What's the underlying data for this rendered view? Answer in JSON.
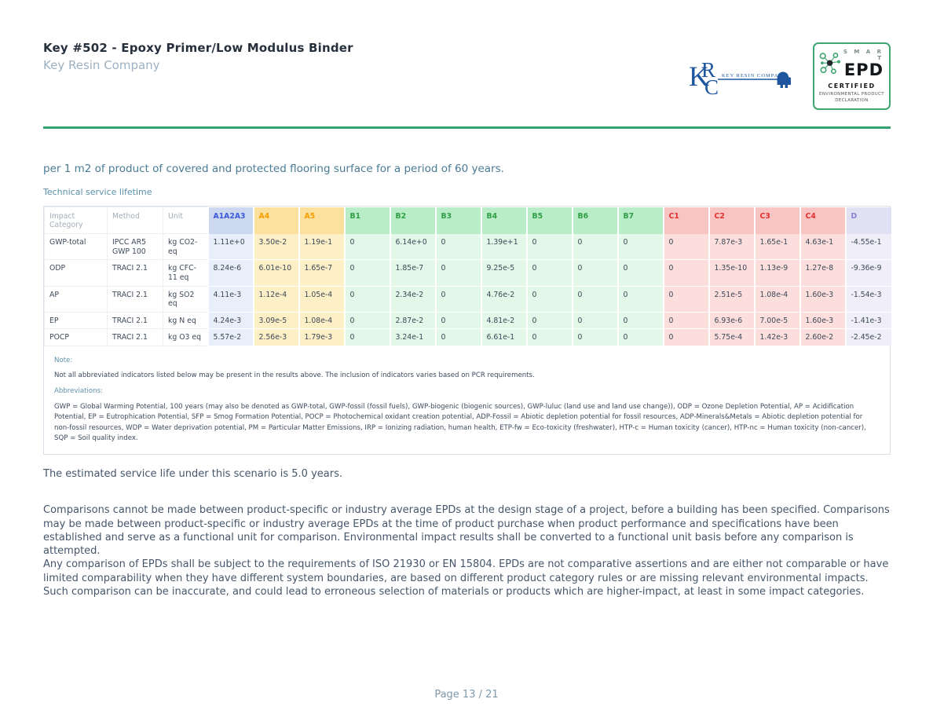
{
  "header": {
    "title": "Key #502 - Epoxy Primer/Low Modulus Binder",
    "subtitle": "Key Resin Company"
  },
  "logos": {
    "krc": {
      "letter_k": "K",
      "letter_r": "R",
      "letter_c": "C",
      "company": "KEY RESIN COMPANY"
    },
    "smart_epd": {
      "smart": "S M A R T",
      "epd": "EPD",
      "certified": "CERTIFIED",
      "env_line1": "ENVIRONMENTAL PRODUCT",
      "env_line2": "DECLARATION"
    }
  },
  "intro": {
    "functional_unit": "per 1 m2 of product of covered and protected flooring surface for a period of 60 years.",
    "table_caption": "Technical service lifetime"
  },
  "results_table": {
    "meta_columns": [
      "Impact Category",
      "Method",
      "Unit"
    ],
    "value_columns": [
      {
        "label": "A1A2A3",
        "group": "a1"
      },
      {
        "label": "A4",
        "group": "a45"
      },
      {
        "label": "A5",
        "group": "a45"
      },
      {
        "label": "B1",
        "group": "b"
      },
      {
        "label": "B2",
        "group": "b"
      },
      {
        "label": "B3",
        "group": "b"
      },
      {
        "label": "B4",
        "group": "b"
      },
      {
        "label": "B5",
        "group": "b"
      },
      {
        "label": "B6",
        "group": "b"
      },
      {
        "label": "B7",
        "group": "b"
      },
      {
        "label": "C1",
        "group": "c"
      },
      {
        "label": "C2",
        "group": "c"
      },
      {
        "label": "C3",
        "group": "c"
      },
      {
        "label": "C4",
        "group": "c"
      },
      {
        "label": "D",
        "group": "d"
      }
    ],
    "group_colors": {
      "a1": {
        "header_bg": "#ccd8f0",
        "header_text": "#3b5bdb",
        "cell_bg": "#e9effa"
      },
      "a45": {
        "header_bg": "#fce09e",
        "header_text": "#f59f00",
        "cell_bg": "#fdf0c6"
      },
      "b": {
        "header_bg": "#b9edc8",
        "header_text": "#2f9e44",
        "cell_bg": "#e3f8e9"
      },
      "c": {
        "header_bg": "#f9c5c2",
        "header_text": "#e03131",
        "cell_bg": "#fcdedd"
      },
      "d": {
        "header_bg": "#e2e1f3",
        "header_text": "#8a7fd6",
        "cell_bg": "#f0eff9"
      }
    },
    "rows": [
      {
        "impact_category": "GWP-total",
        "method": "IPCC AR5 GWP 100",
        "unit": "kg CO2-eq",
        "values": [
          "1.11e+0",
          "3.50e-2",
          "1.19e-1",
          "0",
          "6.14e+0",
          "0",
          "1.39e+1",
          "0",
          "0",
          "0",
          "0",
          "7.87e-3",
          "1.65e-1",
          "4.63e-1",
          "-4.55e-1"
        ]
      },
      {
        "impact_category": "ODP",
        "method": "TRACI 2.1",
        "unit": "kg CFC-11 eq",
        "values": [
          "8.24e-6",
          "6.01e-10",
          "1.65e-7",
          "0",
          "1.85e-7",
          "0",
          "9.25e-5",
          "0",
          "0",
          "0",
          "0",
          "1.35e-10",
          "1.13e-9",
          "1.27e-8",
          "-9.36e-9"
        ]
      },
      {
        "impact_category": "AP",
        "method": "TRACI 2.1",
        "unit": "kg SO2 eq",
        "values": [
          "4.11e-3",
          "1.12e-4",
          "1.05e-4",
          "0",
          "2.34e-2",
          "0",
          "4.76e-2",
          "0",
          "0",
          "0",
          "0",
          "2.51e-5",
          "1.08e-4",
          "1.60e-3",
          "-1.54e-3"
        ]
      },
      {
        "impact_category": "EP",
        "method": "TRACI 2.1",
        "unit": "kg N eq",
        "values": [
          "4.24e-3",
          "3.09e-5",
          "1.08e-4",
          "0",
          "2.87e-2",
          "0",
          "4.81e-2",
          "0",
          "0",
          "0",
          "0",
          "6.93e-6",
          "7.00e-5",
          "1.60e-3",
          "-1.41e-3"
        ]
      },
      {
        "impact_category": "POCP",
        "method": "TRACI 2.1",
        "unit": "kg O3 eq",
        "values": [
          "5.57e-2",
          "2.56e-3",
          "1.79e-3",
          "0",
          "3.24e-1",
          "0",
          "6.61e-1",
          "0",
          "0",
          "0",
          "0",
          "5.75e-4",
          "1.42e-3",
          "2.60e-2",
          "-2.45e-2"
        ]
      }
    ]
  },
  "notes": {
    "note_label": "Note:",
    "note_text": "Not all abbreviated indicators listed below may be present in the results above. The inclusion of indicators varies based on PCR requirements.",
    "abbreviations_label": "Abbreviations:",
    "abbreviations_text": "GWP = Global Warming Potential, 100 years (may also be denoted as GWP-total, GWP-fossil (fossil fuels), GWP-biogenic (biogenic sources), GWP-luluc (land use and land use change)), ODP = Ozone Depletion Potential, AP = Acidification Potential, EP = Eutrophication Potential, SFP = Smog Formation Potential, POCP = Photochemical oxidant creation potential, ADP-Fossil = Abiotic depletion potential for fossil resources, ADP-Minerals&Metals = Abiotic depletion potential for non-fossil resources, WDP = Water deprivation potential, PM = Particular Matter Emissions, IRP = Ionizing radiation, human health, ETP-fw = Eco-toxicity (freshwater), HTP-c = Human toxicity (cancer), HTP-nc = Human toxicity (non-cancer), SQP = Soil quality index."
  },
  "body": {
    "service_life": "The estimated service life under this scenario is 5.0 years.",
    "comparison_paragraph_1": "Comparisons cannot be made between product-specific or industry average EPDs at the design stage of a project, before a building has been specified. Comparisons may be made between product-specific or industry average EPDs at the time of product purchase when product performance and specifications have been established and serve as a functional unit for comparison. Environmental impact results shall be converted to a functional unit basis before any comparison is attempted.",
    "comparison_paragraph_2": "Any comparison of EPDs shall be subject to the requirements of ISO 21930 or EN 15804. EPDs are not comparative assertions and are either not comparable or have limited comparability when they have different system boundaries, are based on different product category rules or are missing relevant environmental impacts. Such comparison can be inaccurate, and could lead to erroneous selection of materials or products which are higher-impact, at least in some impact categories."
  },
  "footer": {
    "page_label": "Page 13 / 21"
  },
  "colors": {
    "accent_green": "#33a370",
    "krc_blue": "#1d559f",
    "epd_border_green": "#3fa671",
    "teal_label": "#5890aa",
    "body_text": "#45566b"
  }
}
